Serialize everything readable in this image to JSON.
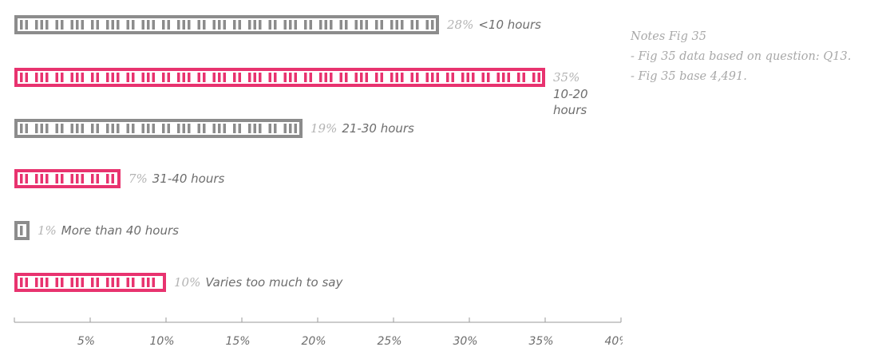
{
  "chart_data": {
    "type": "bar",
    "orientation": "horizontal",
    "categories": [
      "<10 hours",
      "10-20 hours",
      "21-30 hours",
      "31-40 hours",
      "More than 40 hours",
      "Varies too much to say"
    ],
    "values": [
      28,
      35,
      19,
      7,
      1,
      10
    ],
    "value_labels": [
      "28%",
      "35%",
      "19%",
      "7%",
      "1%",
      "10%"
    ],
    "bar_colors": [
      "#8c8c8c",
      "#e8336f",
      "#8c8c8c",
      "#e8336f",
      "#8c8c8c",
      "#e8336f"
    ],
    "xlim": [
      0,
      40
    ],
    "x_ticks": [
      "5%",
      "10%",
      "15%",
      "20%",
      "25%",
      "30%",
      "35%",
      "40%"
    ],
    "grid": false,
    "legend": "none"
  },
  "notes": {
    "title": "Notes Fig 35",
    "lines": [
      "- Fig 35 data based on question: Q13.",
      "- Fig 35 base 4,491."
    ]
  }
}
